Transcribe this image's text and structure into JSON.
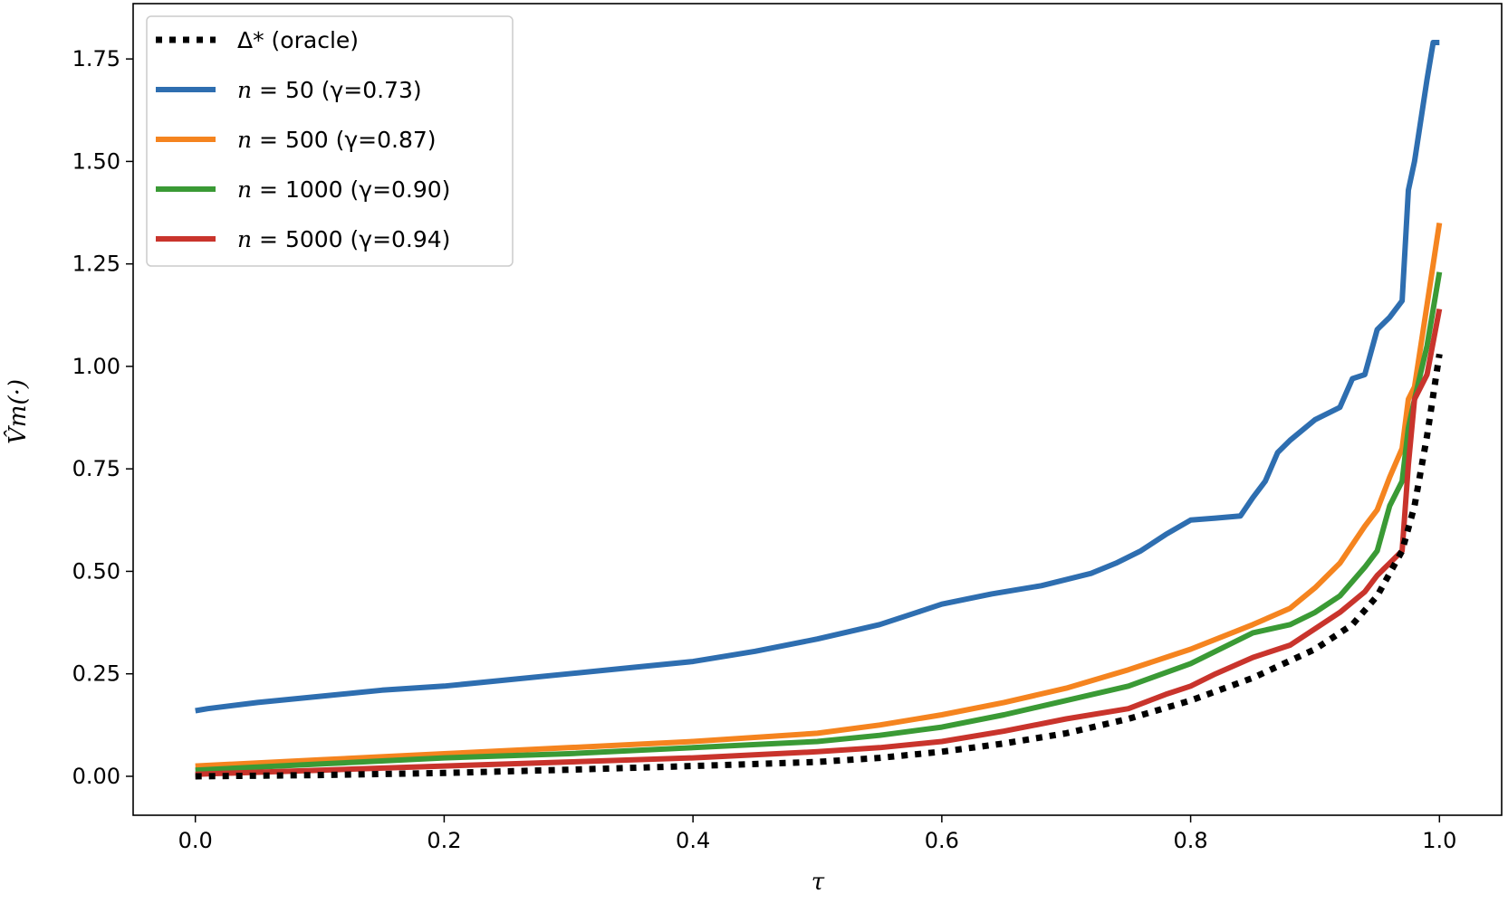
{
  "chart_data": {
    "type": "line",
    "title": "",
    "xlabel": "τ",
    "ylabel": "V̂m(·)",
    "xlim": [
      -0.05,
      1.05
    ],
    "ylim": [
      -0.095,
      1.885
    ],
    "xticks": [
      0.0,
      0.2,
      0.4,
      0.6,
      0.8,
      1.0
    ],
    "xtick_labels": [
      "0.0",
      "0.2",
      "0.4",
      "0.6",
      "0.8",
      "1.0"
    ],
    "yticks": [
      0.0,
      0.25,
      0.5,
      0.75,
      1.0,
      1.25,
      1.5,
      1.75
    ],
    "ytick_labels": [
      "0.00",
      "0.25",
      "0.50",
      "0.75",
      "1.00",
      "1.25",
      "1.50",
      "1.75"
    ],
    "grid": false,
    "legend_position": "top-left",
    "series": [
      {
        "name": "oracle",
        "label": "Δ* (oracle)",
        "color": "#000000",
        "style": "dotted",
        "x": [
          0.0,
          0.1,
          0.2,
          0.3,
          0.4,
          0.5,
          0.55,
          0.6,
          0.65,
          0.7,
          0.75,
          0.8,
          0.85,
          0.9,
          0.93,
          0.95,
          0.97,
          0.98,
          0.99,
          1.0
        ],
        "y": [
          0.0,
          0.003,
          0.008,
          0.016,
          0.025,
          0.035,
          0.045,
          0.06,
          0.08,
          0.105,
          0.14,
          0.185,
          0.24,
          0.31,
          0.37,
          0.44,
          0.55,
          0.66,
          0.83,
          1.03
        ]
      },
      {
        "name": "n50",
        "label": "n = 50  (γ=0.73)",
        "label_parts": [
          "n",
          " = 50  (γ=0.73)"
        ],
        "color": "#2e6eb0",
        "style": "solid",
        "x": [
          0.0,
          0.01,
          0.05,
          0.1,
          0.15,
          0.2,
          0.25,
          0.3,
          0.35,
          0.4,
          0.45,
          0.5,
          0.55,
          0.58,
          0.6,
          0.64,
          0.68,
          0.72,
          0.74,
          0.76,
          0.78,
          0.8,
          0.82,
          0.84,
          0.85,
          0.86,
          0.87,
          0.88,
          0.9,
          0.92,
          0.93,
          0.94,
          0.95,
          0.96,
          0.97,
          0.975,
          0.98,
          0.99,
          0.995,
          1.0
        ],
        "y": [
          0.16,
          0.165,
          0.18,
          0.195,
          0.21,
          0.22,
          0.235,
          0.25,
          0.265,
          0.28,
          0.305,
          0.335,
          0.37,
          0.4,
          0.42,
          0.445,
          0.465,
          0.495,
          0.52,
          0.55,
          0.59,
          0.625,
          0.63,
          0.635,
          0.68,
          0.72,
          0.79,
          0.82,
          0.87,
          0.9,
          0.97,
          0.98,
          1.09,
          1.12,
          1.16,
          1.43,
          1.5,
          1.7,
          1.79,
          1.79
        ]
      },
      {
        "name": "n500",
        "label": "n = 500  (γ=0.87)",
        "label_parts": [
          "n",
          " = 500  (γ=0.87)"
        ],
        "color": "#f5841f",
        "style": "solid",
        "x": [
          0.0,
          0.1,
          0.2,
          0.3,
          0.4,
          0.5,
          0.55,
          0.6,
          0.65,
          0.7,
          0.75,
          0.8,
          0.85,
          0.88,
          0.9,
          0.92,
          0.94,
          0.95,
          0.96,
          0.97,
          0.975,
          0.98,
          0.99,
          1.0
        ],
        "y": [
          0.025,
          0.04,
          0.055,
          0.07,
          0.085,
          0.105,
          0.125,
          0.15,
          0.18,
          0.215,
          0.26,
          0.31,
          0.37,
          0.41,
          0.46,
          0.52,
          0.61,
          0.65,
          0.73,
          0.8,
          0.92,
          0.95,
          1.15,
          1.35
        ]
      },
      {
        "name": "n1000",
        "label": "n = 1000  (γ=0.90)",
        "label_parts": [
          "n",
          " = 1000  (γ=0.90)"
        ],
        "color": "#3a9a35",
        "style": "solid",
        "x": [
          0.0,
          0.1,
          0.2,
          0.3,
          0.4,
          0.5,
          0.55,
          0.6,
          0.65,
          0.7,
          0.75,
          0.8,
          0.85,
          0.88,
          0.9,
          0.92,
          0.94,
          0.95,
          0.96,
          0.97,
          0.975,
          0.98,
          0.99,
          1.0
        ],
        "y": [
          0.015,
          0.03,
          0.045,
          0.055,
          0.07,
          0.085,
          0.1,
          0.12,
          0.15,
          0.185,
          0.22,
          0.275,
          0.35,
          0.37,
          0.4,
          0.44,
          0.51,
          0.55,
          0.66,
          0.72,
          0.85,
          0.92,
          1.05,
          1.23
        ]
      },
      {
        "name": "n5000",
        "label": "n = 5000  (γ=0.94)",
        "label_parts": [
          "n",
          " = 5000  (γ=0.94)"
        ],
        "color": "#c9342c",
        "style": "solid",
        "x": [
          0.0,
          0.1,
          0.2,
          0.3,
          0.4,
          0.5,
          0.55,
          0.6,
          0.65,
          0.7,
          0.75,
          0.78,
          0.8,
          0.82,
          0.85,
          0.88,
          0.9,
          0.92,
          0.94,
          0.95,
          0.96,
          0.97,
          0.975,
          0.98,
          0.99,
          1.0
        ],
        "y": [
          0.005,
          0.015,
          0.025,
          0.035,
          0.045,
          0.06,
          0.07,
          0.085,
          0.11,
          0.14,
          0.165,
          0.2,
          0.22,
          0.25,
          0.29,
          0.32,
          0.36,
          0.4,
          0.45,
          0.49,
          0.52,
          0.55,
          0.76,
          0.92,
          0.98,
          1.14
        ]
      }
    ]
  }
}
